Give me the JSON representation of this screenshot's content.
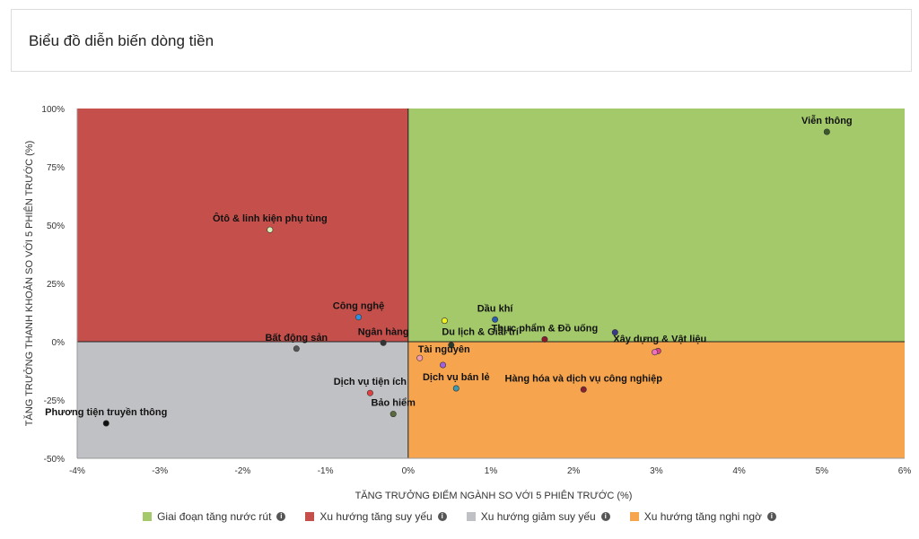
{
  "header": {
    "title": "Biểu đồ diễn biến dòng tiền"
  },
  "chart_data": {
    "type": "scatter",
    "title": "",
    "xlabel": "TĂNG TRƯỞNG ĐIỂM NGÀNH SO VỚI 5 PHIÊN TRƯỚC (%)",
    "ylabel": "TĂNG TRƯỞNG THANH KHOẢN SO VỚI 5 PHIÊN TRƯỚC (%)",
    "xlim": [
      -4,
      6
    ],
    "ylim": [
      -50,
      100
    ],
    "x_ticks": [
      -4,
      -3,
      -2,
      -1,
      0,
      1,
      2,
      3,
      4,
      5,
      6
    ],
    "x_tick_labels": [
      "-4%",
      "-3%",
      "-2%",
      "-1%",
      "0%",
      "1%",
      "2%",
      "3%",
      "4%",
      "5%",
      "6%"
    ],
    "y_ticks": [
      -50,
      -25,
      0,
      25,
      50,
      75,
      100
    ],
    "y_tick_labels": [
      "-50%",
      "-25%",
      "0%",
      "25%",
      "50%",
      "75%",
      "100%"
    ],
    "quadrants": [
      {
        "name": "Giai đoạn tăng nước rút",
        "color": "#a3c96a",
        "region": "x>=0,y>=0"
      },
      {
        "name": "Xu hướng tăng suy yếu",
        "color": "#c5504b",
        "region": "x<0,y>=0"
      },
      {
        "name": "Xu hướng giảm suy yếu",
        "color": "#c0c1c4",
        "region": "x<0,y<0"
      },
      {
        "name": "Xu hướng tăng nghi ngờ",
        "color": "#f6a54e",
        "region": "x>=0,y<0"
      }
    ],
    "points": [
      {
        "label": "Viễn thông",
        "x": 5.06,
        "y": 90,
        "color": "#3a5a2a",
        "label_pos": "above"
      },
      {
        "label": "Ôtô & linh kiện phụ tùng",
        "x": -1.67,
        "y": 48,
        "color": "#d8efb5",
        "label_pos": "above"
      },
      {
        "label": "Công nghệ",
        "x": -0.6,
        "y": 10.5,
        "color": "#2f8fe0",
        "label_pos": "above"
      },
      {
        "label": "Dầu khí",
        "x": 1.05,
        "y": 9.5,
        "color": "#2a5db0",
        "label_pos": "above"
      },
      {
        "label": "Du lịch & Giải trí",
        "x": 0.44,
        "y": 9,
        "color": "#f0f020",
        "label_pos": "below-right"
      },
      {
        "label": "Thực phẩm & Đồ uống",
        "x": 1.65,
        "y": 1,
        "color": "#8a1a2a",
        "label_pos": "above"
      },
      {
        "label": "Xây dựng & Vật liệu",
        "x": 2.5,
        "y": 4,
        "color": "#3a3a8a",
        "label_pos": "below-right"
      },
      {
        "label": "Ngân hàng",
        "x": -0.3,
        "y": -0.5,
        "color": "#333333",
        "label_pos": "above"
      },
      {
        "label": "Bất động sản",
        "x": -1.35,
        "y": -3,
        "color": "#555555",
        "label_pos": "above"
      },
      {
        "label": "",
        "x": 0.52,
        "y": -1.5,
        "color": "#2a3a2a",
        "label_pos": "none"
      },
      {
        "label": "",
        "x": 3.02,
        "y": -4,
        "color": "#e0408a",
        "label_pos": "none"
      },
      {
        "label": "",
        "x": 2.98,
        "y": -4.5,
        "color": "#f070c0",
        "label_pos": "none"
      },
      {
        "label": "Tài nguyên",
        "x": 0.14,
        "y": -7,
        "color": "#f49ab0",
        "label_pos": "above-right"
      },
      {
        "label": "",
        "x": 0.42,
        "y": -10,
        "color": "#a060e0",
        "label_pos": "none"
      },
      {
        "label": "Dịch vụ bán lẻ",
        "x": 0.58,
        "y": -20,
        "color": "#3a9ab0",
        "label_pos": "above"
      },
      {
        "label": "Hàng hóa và dịch vụ công nghiệp",
        "x": 2.12,
        "y": -20.5,
        "color": "#8a2030",
        "label_pos": "above"
      },
      {
        "label": "Dịch vụ tiện ích",
        "x": -0.46,
        "y": -22,
        "color": "#e04040",
        "label_pos": "above"
      },
      {
        "label": "Bảo hiểm",
        "x": -0.18,
        "y": -31,
        "color": "#5a6a3a",
        "label_pos": "above"
      },
      {
        "label": "Phương tiện truyền thông",
        "x": -3.65,
        "y": -35,
        "color": "#111111",
        "label_pos": "above"
      }
    ],
    "legend": [
      {
        "name": "Giai đoạn tăng nước rút",
        "color": "#a3c96a"
      },
      {
        "name": "Xu hướng tăng suy yếu",
        "color": "#c5504b"
      },
      {
        "name": "Xu hướng giảm suy yếu",
        "color": "#c0c1c4"
      },
      {
        "name": "Xu hướng tăng nghi ngờ",
        "color": "#f6a54e"
      }
    ],
    "legend_icon": "info-icon",
    "legend_placement": "bottom",
    "grid": false
  }
}
